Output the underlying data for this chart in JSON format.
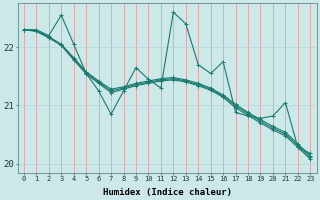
{
  "xlabel": "Humidex (Indice chaleur)",
  "background_color": "#cce8e8",
  "grid_color_v": "#e89090",
  "grid_color_h": "#b0d8d8",
  "line_color": "#1a7a6e",
  "xlim": [
    -0.5,
    23.5
  ],
  "ylim": [
    19.85,
    22.75
  ],
  "yticks": [
    20,
    21,
    22
  ],
  "xticks": [
    0,
    1,
    2,
    3,
    4,
    5,
    6,
    7,
    8,
    9,
    10,
    11,
    12,
    13,
    14,
    15,
    16,
    17,
    18,
    19,
    20,
    21,
    22,
    23
  ],
  "series": [
    [
      22.3,
      22.3,
      22.2,
      22.55,
      22.05,
      21.55,
      21.25,
      20.85,
      21.25,
      21.65,
      21.45,
      21.3,
      22.6,
      22.4,
      21.7,
      21.55,
      21.75,
      20.88,
      20.82,
      20.78,
      20.82,
      21.05,
      20.28,
      20.18
    ],
    [
      22.3,
      22.28,
      22.18,
      22.05,
      21.82,
      21.58,
      21.42,
      21.28,
      21.32,
      21.38,
      21.42,
      21.46,
      21.48,
      21.44,
      21.38,
      21.3,
      21.18,
      21.02,
      20.88,
      20.76,
      20.64,
      20.54,
      20.34,
      20.14
    ],
    [
      22.3,
      22.28,
      22.17,
      22.04,
      21.8,
      21.56,
      21.4,
      21.25,
      21.3,
      21.36,
      21.4,
      21.44,
      21.46,
      21.42,
      21.36,
      21.28,
      21.16,
      20.99,
      20.86,
      20.73,
      20.61,
      20.51,
      20.31,
      20.11
    ],
    [
      22.3,
      22.27,
      22.16,
      22.03,
      21.78,
      21.54,
      21.38,
      21.22,
      21.28,
      21.34,
      21.38,
      21.42,
      21.44,
      21.4,
      21.34,
      21.26,
      21.14,
      20.96,
      20.83,
      20.7,
      20.58,
      20.48,
      20.28,
      20.08
    ]
  ]
}
